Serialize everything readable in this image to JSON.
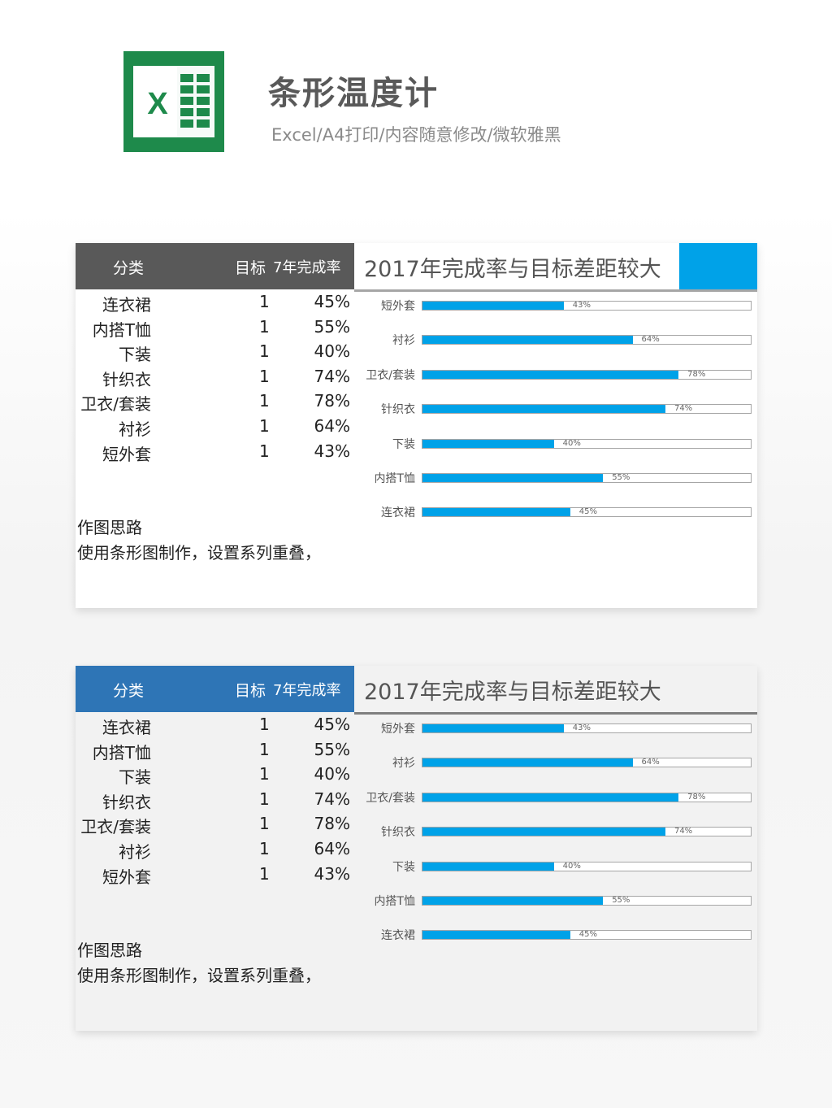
{
  "header": {
    "title": "条形温度计",
    "subtitle": "Excel/A4打印/内容随意修改/微软雅黑",
    "logo_letter": "X"
  },
  "colors": {
    "accent": "#00a2e8",
    "header_gray": "#595959",
    "header_blue": "#2e75b6",
    "excel_green": "#1e8a4b"
  },
  "table": {
    "headers": [
      "分类",
      "目标",
      "7年完成率"
    ],
    "rows": [
      {
        "category": "连衣裙",
        "target": "1",
        "rate": "45%"
      },
      {
        "category": "内搭T恤",
        "target": "1",
        "rate": "55%"
      },
      {
        "category": "下装",
        "target": "1",
        "rate": "40%"
      },
      {
        "category": "针织衣",
        "target": "1",
        "rate": "74%"
      },
      {
        "category": "卫衣/套装",
        "target": "1",
        "rate": "78%"
      },
      {
        "category": "衬衫",
        "target": "1",
        "rate": "64%"
      },
      {
        "category": "短外套",
        "target": "1",
        "rate": "43%"
      }
    ]
  },
  "notes": {
    "title": "作图思路",
    "body": "使用条形图制作，设置系列重叠，"
  },
  "chart_data": [
    {
      "type": "bar",
      "orientation": "horizontal",
      "title": "2017年完成率与目标差距较大",
      "categories": [
        "短外套",
        "衬衫",
        "卫衣/套装",
        "针织衣",
        "下装",
        "内搭T恤",
        "连衣裙"
      ],
      "values": [
        0.43,
        0.64,
        0.78,
        0.74,
        0.4,
        0.55,
        0.45
      ],
      "data_labels": [
        "43%",
        "64%",
        "78%",
        "74%",
        "40%",
        "55%",
        "45%"
      ],
      "target": [
        1,
        1,
        1,
        1,
        1,
        1,
        1
      ],
      "xlim": [
        0,
        1
      ],
      "grid": false,
      "legend": "none"
    },
    {
      "type": "bar",
      "orientation": "horizontal",
      "title": "2017年完成率与目标差距较大",
      "categories": [
        "短外套",
        "衬衫",
        "卫衣/套装",
        "针织衣",
        "下装",
        "内搭T恤",
        "连衣裙"
      ],
      "values": [
        0.43,
        0.64,
        0.78,
        0.74,
        0.4,
        0.55,
        0.45
      ],
      "data_labels": [
        "43%",
        "64%",
        "78%",
        "74%",
        "40%",
        "55%",
        "45%"
      ],
      "target": [
        1,
        1,
        1,
        1,
        1,
        1,
        1
      ],
      "xlim": [
        0,
        1
      ],
      "grid": false,
      "legend": "none"
    }
  ]
}
